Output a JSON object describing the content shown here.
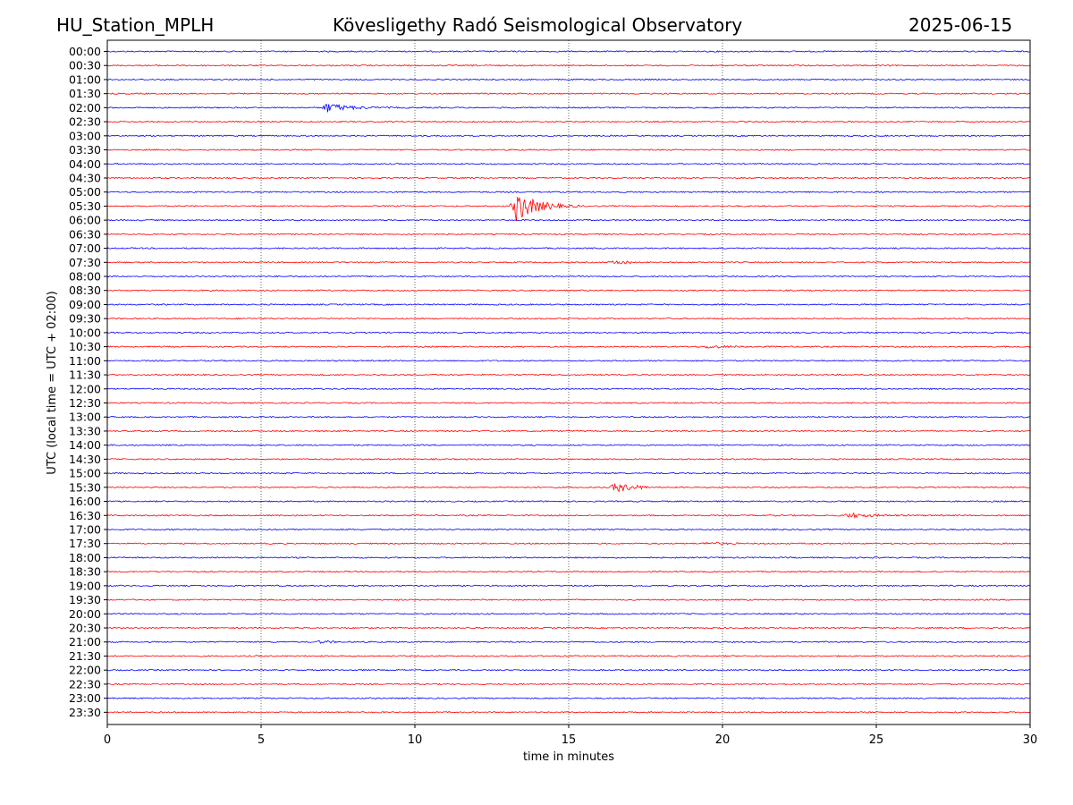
{
  "header": {
    "station": "HU_Station_MPLH",
    "title": "Kövesligethy Radó Seismological Observatory",
    "date": "2025-06-15"
  },
  "chart_data": {
    "type": "line",
    "title": "Kövesligethy Radó Seismological Observatory",
    "xlabel": "time in minutes",
    "ylabel": "UTC (local time = UTC + 02:00)",
    "xlim": [
      0,
      30
    ],
    "x_ticks": [
      0,
      5,
      10,
      15,
      20,
      25,
      30
    ],
    "grid": "vertical dotted lines at 5-minute ticks",
    "colors": {
      "even_rows": "#0000ff",
      "odd_rows": "#ff0000",
      "grid": "#000000"
    },
    "rows": [
      "00:00",
      "00:30",
      "01:00",
      "01:30",
      "02:00",
      "02:30",
      "03:00",
      "03:30",
      "04:00",
      "04:30",
      "05:00",
      "05:30",
      "06:00",
      "06:30",
      "07:00",
      "07:30",
      "08:00",
      "08:30",
      "09:00",
      "09:30",
      "10:00",
      "10:30",
      "11:00",
      "11:30",
      "12:00",
      "12:30",
      "13:00",
      "13:30",
      "14:00",
      "14:30",
      "15:00",
      "15:30",
      "16:00",
      "16:30",
      "17:00",
      "17:30",
      "18:00",
      "18:30",
      "19:00",
      "19:30",
      "20:00",
      "20:30",
      "21:00",
      "21:30",
      "22:00",
      "22:30",
      "23:00",
      "23:30"
    ],
    "events": [
      {
        "row": "02:00",
        "start_min": 7.0,
        "end_min": 10.0,
        "peak_min": 7.1,
        "amplitude": 0.7
      },
      {
        "row": "05:30",
        "start_min": 13.0,
        "end_min": 15.5,
        "peak_min": 13.3,
        "amplitude": 2.2
      },
      {
        "row": "07:30",
        "start_min": 16.3,
        "end_min": 17.0,
        "peak_min": 16.5,
        "amplitude": 0.25
      },
      {
        "row": "10:30",
        "start_min": 18.8,
        "end_min": 20.8,
        "peak_min": 19.5,
        "amplitude": 0.2
      },
      {
        "row": "15:30",
        "start_min": 16.3,
        "end_min": 17.6,
        "peak_min": 16.5,
        "amplitude": 0.7
      },
      {
        "row": "16:30",
        "start_min": 19.3,
        "end_min": 28.2,
        "peak_min": 24.1,
        "amplitude": 0.35
      },
      {
        "row": "17:30",
        "start_min": 19.0,
        "end_min": 20.5,
        "peak_min": 19.5,
        "amplitude": 0.2
      },
      {
        "row": "21:00",
        "start_min": 6.6,
        "end_min": 7.4,
        "peak_min": 6.9,
        "amplitude": 0.15
      }
    ]
  }
}
